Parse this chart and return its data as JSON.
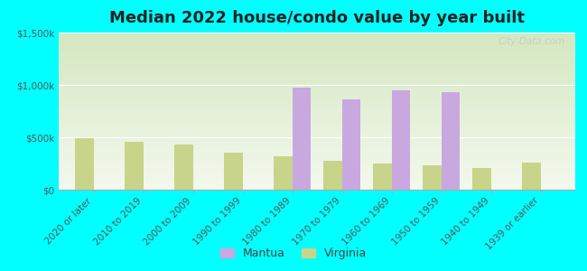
{
  "title": "Median 2022 house/condo value by year built",
  "categories": [
    "2020 or later",
    "2010 to 2019",
    "2000 to 2009",
    "1990 to 1999",
    "1980 to 1989",
    "1970 to 1979",
    "1960 to 1969",
    "1950 to 1959",
    "1940 to 1949",
    "1939 or earlier"
  ],
  "mantua_values": [
    0,
    0,
    0,
    0,
    970000,
    860000,
    950000,
    930000,
    0,
    0
  ],
  "virginia_values": [
    490000,
    460000,
    430000,
    350000,
    320000,
    275000,
    250000,
    235000,
    210000,
    260000
  ],
  "mantua_color": "#c9a8e0",
  "virginia_color": "#c8d48a",
  "background_color": "#00ffff",
  "ylim": [
    0,
    1500000
  ],
  "yticks": [
    0,
    500000,
    1000000,
    1500000
  ],
  "bar_width": 0.38,
  "legend_labels": [
    "Mantua",
    "Virginia"
  ],
  "watermark": "City-Data.com",
  "title_fontsize": 13,
  "tick_fontsize": 7.5,
  "legend_fontsize": 9,
  "grad_top": "#d4e8c0",
  "grad_bottom": "#f4f8ee"
}
